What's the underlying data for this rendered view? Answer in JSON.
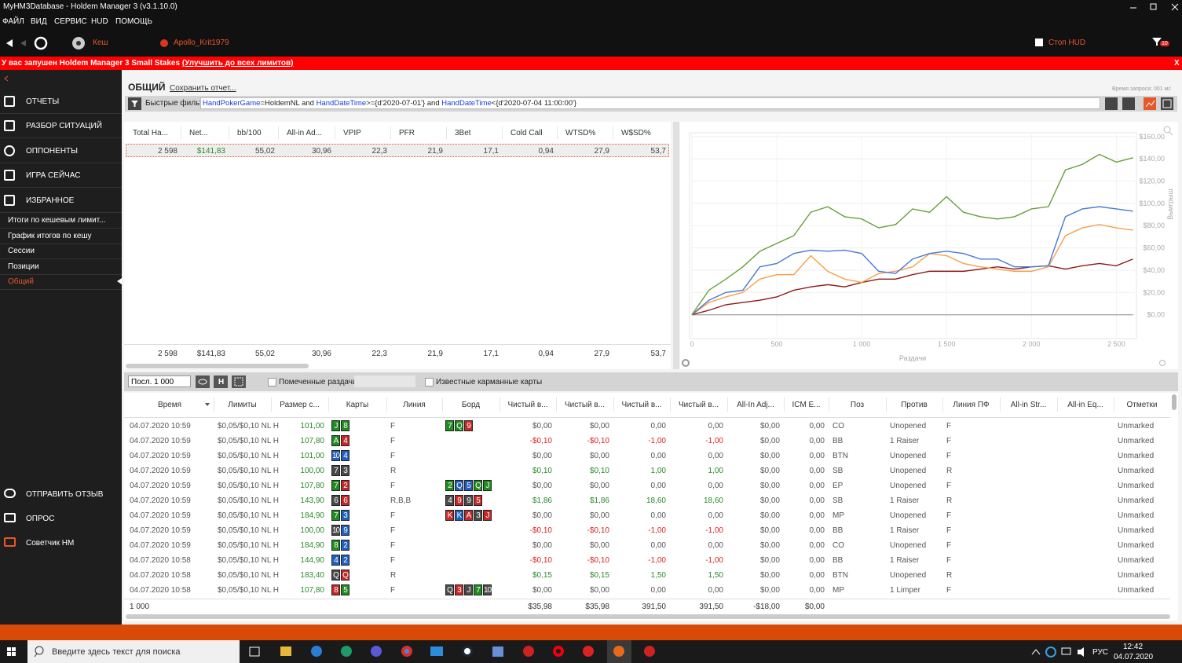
{
  "window": {
    "title": "MyHM3Database - Holdem Manager 3 (v3.1.10.0)"
  },
  "menu": [
    "ФАЙЛ",
    "ВИД",
    "СЕРВИС",
    "HUD",
    "ПОМОЩЬ"
  ],
  "toolbar": {
    "cash": "Кеш",
    "player": "Apollo_Krit1979",
    "stop_hud": "Стоп HUD",
    "filter_count": "10"
  },
  "banner": {
    "text": "У вас запушен Holdem Manager 3 Small Stakes",
    "link": "(Улучшить до всех лимитов)",
    "close": "X"
  },
  "sidebar": {
    "sections": [
      "ОТЧЕТЫ",
      "РАЗБОР СИТУАЦИЙ",
      "ОППОНЕНТЫ",
      "ИГРА СЕЙЧАС",
      "ИЗБРАННОЕ"
    ],
    "favorites": [
      "Итоги по кешевым лимит...",
      "График итогов по кешу",
      "Сессии",
      "Позиции",
      "Общий"
    ],
    "active_favorite": 4,
    "bottom": [
      "ОТПРАВИТЬ ОТЗЫВ",
      "ОПРОС",
      "Советчик HM"
    ]
  },
  "report": {
    "title": "ОБЩИЙ",
    "save": "Сохранить отчет...",
    "query_time": "Время запроса: 001 мс",
    "filter_label": "Быстрые фильт",
    "filter": [
      "HandPokerGame",
      "=HoldemNL and ",
      "HandDateTime",
      ">={d'2020-07-01'} and ",
      "HandDateTime",
      "<{d'2020-07-04 11:00:00'}"
    ]
  },
  "stats": {
    "headers": [
      "Total Ha...",
      "Net...",
      "bb/100",
      "All-in Ad...",
      "VPIP",
      "PFR",
      "3Bet",
      "Cold Call",
      "WTSD%",
      "W$SD%"
    ],
    "row": [
      "2 598",
      "$141,83",
      "55,02",
      "30,96",
      "22,3",
      "21,9",
      "17,1",
      "0,94",
      "27,9",
      "53,7"
    ],
    "totals": [
      "2 598",
      "$141,83",
      "55,02",
      "30,96",
      "22,3",
      "21,9",
      "17,1",
      "0,94",
      "27,9",
      "53,7"
    ]
  },
  "chart_data": {
    "type": "line",
    "xlabel": "Раздачи",
    "ylabel": "Выигрыш",
    "x": [
      0,
      100,
      200,
      300,
      400,
      500,
      600,
      700,
      800,
      900,
      1000,
      1100,
      1200,
      1300,
      1400,
      1500,
      1600,
      1700,
      1800,
      1900,
      2000,
      2100,
      2200,
      2300,
      2400,
      2500,
      2598
    ],
    "xlim": [
      0,
      2600
    ],
    "xticks": [
      0,
      500,
      {
        "value": 1000,
        "label": "1 000"
      },
      {
        "value": 1500,
        "label": "1 500"
      },
      {
        "value": 2000,
        "label": "2 000"
      },
      {
        "value": 2500,
        "label": "2 500"
      }
    ],
    "ylim": [
      -20,
      162
    ],
    "yticks": [
      {
        "value": 0,
        "label": "$0,00"
      },
      {
        "value": 20,
        "label": "$20,00"
      },
      {
        "value": 40,
        "label": "$40,00"
      },
      {
        "value": 60,
        "label": "$60,00"
      },
      {
        "value": 80,
        "label": "$80,00"
      },
      {
        "value": 100,
        "label": "$100,00"
      },
      {
        "value": 120,
        "label": "$120,00"
      },
      {
        "value": 140,
        "label": "$140,00"
      },
      {
        "value": 160,
        "label": "$160,00"
      }
    ],
    "grid": true,
    "series": [
      {
        "color": "#aaaaaa",
        "values": [
          0,
          0,
          0,
          0,
          0,
          0,
          0,
          0,
          0,
          0,
          0,
          0,
          0,
          0,
          0,
          0,
          0,
          0,
          0,
          0,
          0,
          0,
          0,
          0,
          0,
          0,
          0
        ]
      },
      {
        "color": "#8b1a1a",
        "values": [
          0,
          4,
          9,
          11,
          13,
          16,
          22,
          25,
          27,
          25,
          29,
          32,
          32,
          36,
          39,
          39,
          39,
          41,
          43,
          41,
          43,
          44,
          41,
          44,
          46,
          44,
          50
        ]
      },
      {
        "color": "#f5a04a",
        "values": [
          0,
          11,
          16,
          20,
          32,
          36,
          36,
          53,
          39,
          32,
          29,
          37,
          39,
          43,
          55,
          53,
          46,
          43,
          41,
          39,
          39,
          43,
          71,
          78,
          81,
          78,
          76
        ]
      },
      {
        "color": "#4a78d6",
        "values": [
          0,
          13,
          20,
          22,
          43,
          46,
          55,
          58,
          57,
          58,
          55,
          39,
          37,
          50,
          55,
          57,
          55,
          50,
          50,
          43,
          43,
          44,
          88,
          95,
          97,
          95,
          93
        ]
      },
      {
        "color": "#6a9e3a",
        "values": [
          0,
          22,
          32,
          43,
          57,
          64,
          71,
          92,
          97,
          88,
          86,
          78,
          81,
          95,
          92,
          106,
          92,
          88,
          86,
          88,
          95,
          97,
          130,
          135,
          144,
          137,
          141
        ]
      }
    ]
  },
  "hands": {
    "range": "Посл. 1 000",
    "button_h": "H",
    "marked": "Помеченные раздачи",
    "known_cards": "Известные карманные карты",
    "headers": [
      "Время",
      "Лимиты",
      "Размер с...",
      "Карты",
      "Линия",
      "Борд",
      "Чистый в...",
      "Чистый в...",
      "Чистый в...",
      "Чистый в...",
      "All-In Adj...",
      "ICM E...",
      "Поз",
      "Против",
      "Линия ПФ",
      "All-in Str...",
      "All-in Eq...",
      "Отметки"
    ],
    "rows": [
      {
        "time": "04.07.2020 10:59",
        "limit": "$0,05/$0,10 NL H",
        "size": "101,00",
        "cards": [
          {
            "rank": "J",
            "color": "green"
          },
          {
            "rank": "8",
            "color": "green"
          }
        ],
        "line": "F",
        "board": [
          {
            "rank": "7",
            "color": "green"
          },
          {
            "rank": "Q",
            "color": "green"
          },
          {
            "rank": "9",
            "color": "red"
          }
        ],
        "net1": "$0,00",
        "net2": "$0,00",
        "net3": "0,00",
        "net4": "0,00",
        "allin_adj": "$0,00",
        "icm": "0,00",
        "pos": "CO",
        "vs": "Unopened",
        "pf_line": "F",
        "marks": "Unmarked"
      },
      {
        "time": "04.07.2020 10:59",
        "limit": "$0,05/$0,10 NL H",
        "size": "107,80",
        "cards": [
          {
            "rank": "A",
            "color": "green"
          },
          {
            "rank": "4",
            "color": "red"
          }
        ],
        "line": "F",
        "net1": "-$0,10",
        "net2": "-$0,10",
        "net3": "-1,00",
        "net4": "-1,00",
        "allin_adj": "$0,00",
        "icm": "0,00",
        "pos": "BB",
        "vs": "1 Raiser",
        "pf_line": "F",
        "marks": "Unmarked"
      },
      {
        "time": "04.07.2020 10:59",
        "limit": "$0,05/$0,10 NL H",
        "size": "101,00",
        "cards": [
          {
            "rank": "10",
            "color": "blue"
          },
          {
            "rank": "4",
            "color": "blue"
          }
        ],
        "line": "F",
        "net1": "$0,00",
        "net2": "$0,00",
        "net3": "0,00",
        "net4": "0,00",
        "allin_adj": "$0,00",
        "icm": "0,00",
        "pos": "BTN",
        "vs": "Unopened",
        "pf_line": "F",
        "marks": "Unmarked"
      },
      {
        "time": "04.07.2020 10:59",
        "limit": "$0,05/$0,10 NL H",
        "size": "100,00",
        "cards": [
          {
            "rank": "7",
            "color": "gray"
          },
          {
            "rank": "3",
            "color": "gray"
          }
        ],
        "line": "R",
        "net1": "$0,10",
        "net2": "$0,10",
        "net3": "1,00",
        "net4": "1,00",
        "allin_adj": "$0,00",
        "icm": "0,00",
        "pos": "SB",
        "vs": "Unopened",
        "pf_line": "R",
        "marks": "Unmarked"
      },
      {
        "time": "04.07.2020 10:59",
        "limit": "$0,05/$0,10 NL H",
        "size": "107,80",
        "cards": [
          {
            "rank": "7",
            "color": "green"
          },
          {
            "rank": "2",
            "color": "red"
          }
        ],
        "line": "F",
        "board": [
          {
            "rank": "2",
            "color": "green"
          },
          {
            "rank": "Q",
            "color": "blue"
          },
          {
            "rank": "5",
            "color": "blue"
          },
          {
            "rank": "Q",
            "color": "green"
          },
          {
            "rank": "J",
            "color": "green"
          }
        ],
        "net1": "$0,00",
        "net2": "$0,00",
        "net3": "0,00",
        "net4": "0,00",
        "allin_adj": "$0,00",
        "icm": "0,00",
        "pos": "EP",
        "vs": "Unopened",
        "pf_line": "F",
        "marks": "Unmarked"
      },
      {
        "time": "04.07.2020 10:59",
        "limit": "$0,05/$0,10 NL H",
        "size": "143,90",
        "cards": [
          {
            "rank": "6",
            "color": "gray"
          },
          {
            "rank": "6",
            "color": "red"
          }
        ],
        "line": "R,B,B",
        "board": [
          {
            "rank": "4",
            "color": "gray"
          },
          {
            "rank": "9",
            "color": "red"
          },
          {
            "rank": "9",
            "color": "gray"
          },
          {
            "rank": "5",
            "color": "red"
          }
        ],
        "net1": "$1,86",
        "net2": "$1,86",
        "net3": "18,60",
        "net4": "18,60",
        "allin_adj": "$0,00",
        "icm": "0,00",
        "pos": "SB",
        "vs": "1 Raiser",
        "pf_line": "R",
        "marks": "Unmarked"
      },
      {
        "time": "04.07.2020 10:59",
        "limit": "$0,05/$0,10 NL H",
        "size": "184,90",
        "cards": [
          {
            "rank": "7",
            "color": "green"
          },
          {
            "rank": "3",
            "color": "blue"
          }
        ],
        "line": "F",
        "board": [
          {
            "rank": "K",
            "color": "red"
          },
          {
            "rank": "K",
            "color": "blue"
          },
          {
            "rank": "A",
            "color": "red"
          },
          {
            "rank": "3",
            "color": "gray"
          },
          {
            "rank": "J",
            "color": "red"
          }
        ],
        "net1": "$0,00",
        "net2": "$0,00",
        "net3": "0,00",
        "net4": "0,00",
        "allin_adj": "$0,00",
        "icm": "0,00",
        "pos": "MP",
        "vs": "Unopened",
        "pf_line": "F",
        "marks": "Unmarked"
      },
      {
        "time": "04.07.2020 10:59",
        "limit": "$0,05/$0,10 NL H",
        "size": "100,00",
        "cards": [
          {
            "rank": "10",
            "color": "gray"
          },
          {
            "rank": "9",
            "color": "blue"
          }
        ],
        "line": "F",
        "net1": "-$0,10",
        "net2": "-$0,10",
        "net3": "-1,00",
        "net4": "-1,00",
        "allin_adj": "$0,00",
        "icm": "0,00",
        "pos": "BB",
        "vs": "1 Raiser",
        "pf_line": "F",
        "marks": "Unmarked"
      },
      {
        "time": "04.07.2020 10:59",
        "limit": "$0,05/$0,10 NL H",
        "size": "184,90",
        "cards": [
          {
            "rank": "8",
            "color": "green"
          },
          {
            "rank": "2",
            "color": "blue"
          }
        ],
        "line": "F",
        "net1": "$0,00",
        "net2": "$0,00",
        "net3": "0,00",
        "net4": "0,00",
        "allin_adj": "$0,00",
        "icm": "0,00",
        "pos": "CO",
        "vs": "Unopened",
        "pf_line": "F",
        "marks": "Unmarked"
      },
      {
        "time": "04.07.2020 10:58",
        "limit": "$0,05/$0,10 NL H",
        "size": "144,90",
        "cards": [
          {
            "rank": "4",
            "color": "blue"
          },
          {
            "rank": "2",
            "color": "blue"
          }
        ],
        "line": "F",
        "net1": "-$0,10",
        "net2": "-$0,10",
        "net3": "-1,00",
        "net4": "-1,00",
        "allin_adj": "$0,00",
        "icm": "0,00",
        "pos": "BB",
        "vs": "1 Raiser",
        "pf_line": "F",
        "marks": "Unmarked"
      },
      {
        "time": "04.07.2020 10:58",
        "limit": "$0,05/$0,10 NL H",
        "size": "183,40",
        "cards": [
          {
            "rank": "Q",
            "color": "gray"
          },
          {
            "rank": "Q",
            "color": "red"
          }
        ],
        "line": "R",
        "net1": "$0,15",
        "net2": "$0,15",
        "net3": "1,50",
        "net4": "1,50",
        "allin_adj": "$0,00",
        "icm": "0,00",
        "pos": "BTN",
        "vs": "Unopened",
        "pf_line": "R",
        "marks": "Unmarked"
      },
      {
        "time": "04.07.2020 10:58",
        "limit": "$0,05/$0,10 NL H",
        "size": "107,80",
        "cards": [
          {
            "rank": "8",
            "color": "red"
          },
          {
            "rank": "5",
            "color": "green"
          }
        ],
        "line": "F",
        "board": [
          {
            "rank": "Q",
            "color": "gray"
          },
          {
            "rank": "3",
            "color": "red"
          },
          {
            "rank": "J",
            "color": "gray"
          },
          {
            "rank": "7",
            "color": "green"
          },
          {
            "rank": "10",
            "color": "gray"
          }
        ],
        "net1": "$0,00",
        "net2": "$0,00",
        "net3": "0,00",
        "net4": "0,00",
        "allin_adj": "$0,00",
        "icm": "0,00",
        "pos": "MP",
        "vs": "1 Limper",
        "pf_line": "F",
        "marks": "Unmarked"
      }
    ],
    "totals": {
      "time": "1 000",
      "net1": "$35,98",
      "net2": "$35,98",
      "net3": "391,50",
      "net4": "391,50",
      "allin_adj": "-$18,00",
      "icm": "$0,00"
    }
  },
  "taskbar": {
    "search": "Введите здесь текст для поиска",
    "lang": "РУС",
    "time": "12:42",
    "date": "04.07.2020"
  }
}
